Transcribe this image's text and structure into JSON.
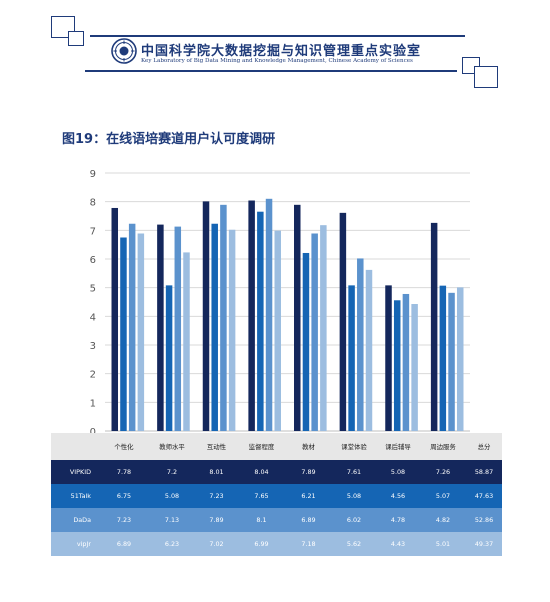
{
  "header": {
    "title_cn": "中国科学院大数据挖掘与知识管理重点实验室",
    "title_en": "Key Laboratory of Big Data Mining and Knowledge Management, Chinese Academy of Sciences"
  },
  "figure": {
    "caption": "图19：在线语培赛道用户认可度调研"
  },
  "colors": {
    "series": [
      "#14275c",
      "#1565b4",
      "#5b92cd",
      "#9cbde0"
    ],
    "row_text": [
      "#ffffff",
      "#ffffff",
      "#ffffff",
      "#ffffff"
    ],
    "accent": "#1f3b7a",
    "grid": "#d9d9d9"
  },
  "chart_data": {
    "type": "bar",
    "title": "",
    "xlabel": "",
    "ylabel": "",
    "ylim": [
      0,
      9
    ],
    "yticks": [
      "0",
      "1",
      "2",
      "3",
      "4",
      "5",
      "6",
      "7",
      "8",
      "9"
    ],
    "grid": true,
    "categories": [
      "个性化",
      "教师水平",
      "互动性",
      "监督程度",
      "教材",
      "课堂体验",
      "课后辅导",
      "周边服务"
    ],
    "series": [
      {
        "name": "VIPKID",
        "values": [
          7.78,
          7.2,
          8.01,
          8.04,
          7.89,
          7.61,
          5.08,
          7.26
        ]
      },
      {
        "name": "51Talk",
        "values": [
          6.75,
          5.08,
          7.23,
          7.65,
          6.21,
          5.08,
          4.56,
          5.07
        ]
      },
      {
        "name": "DaDa",
        "values": [
          7.23,
          7.13,
          7.89,
          8.1,
          6.89,
          6.02,
          4.78,
          4.82
        ]
      },
      {
        "name": "vipJr",
        "values": [
          6.89,
          6.23,
          7.02,
          6.99,
          7.18,
          5.62,
          4.43,
          5.01
        ]
      }
    ]
  },
  "table": {
    "headers": [
      "",
      "个性化",
      "教师水平",
      "互动性",
      "监督程度",
      "教材",
      "课堂体验",
      "课后辅导",
      "周边服务",
      "总分"
    ],
    "rows": [
      [
        "VIPKID",
        "7.78",
        "7.2",
        "8.01",
        "8.04",
        "7.89",
        "7.61",
        "5.08",
        "7.26",
        "58.87"
      ],
      [
        "51Talk",
        "6.75",
        "5.08",
        "7.23",
        "7.65",
        "6.21",
        "5.08",
        "4.56",
        "5.07",
        "47.63"
      ],
      [
        "DaDa",
        "7.23",
        "7.13",
        "7.89",
        "8.1",
        "6.89",
        "6.02",
        "4.78",
        "4.82",
        "52.86"
      ],
      [
        "vipJr",
        "6.89",
        "6.23",
        "7.02",
        "6.99",
        "7.18",
        "5.62",
        "4.43",
        "5.01",
        "49.37"
      ]
    ]
  }
}
